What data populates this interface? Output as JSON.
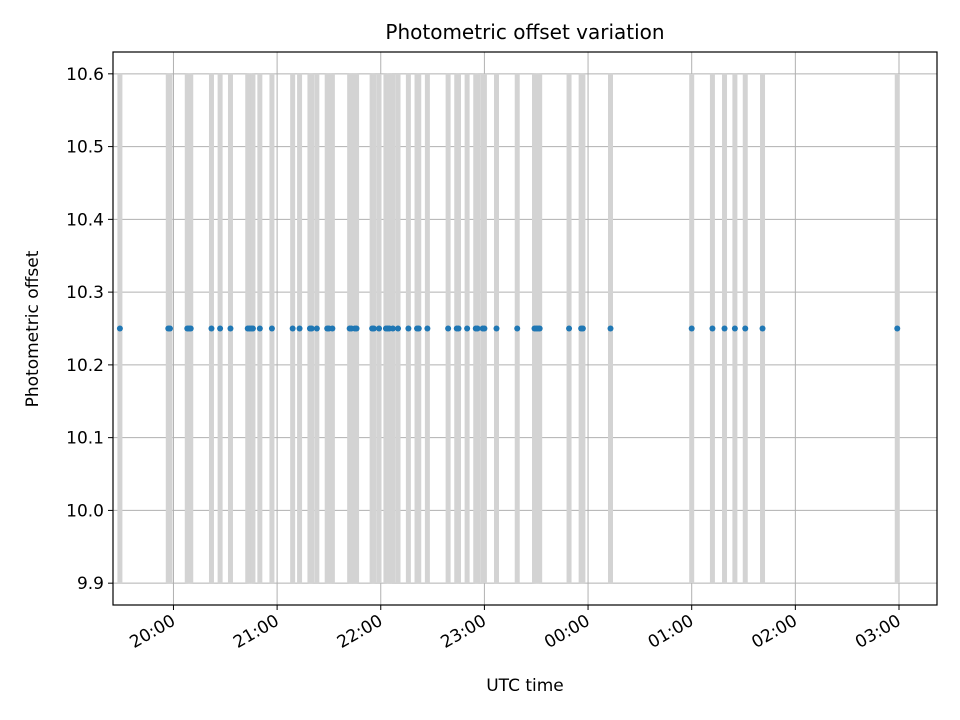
{
  "chart_data": {
    "type": "scatter",
    "title": "Photometric offset variation",
    "xlabel": "UTC time",
    "ylabel": "Photometric offset",
    "ylim": [
      9.87,
      10.63
    ],
    "xlim": [
      "19:25",
      "03:22"
    ],
    "xticks": [
      "20:00",
      "21:00",
      "22:00",
      "23:00",
      "00:00",
      "01:00",
      "02:00",
      "03:00"
    ],
    "yticks": [
      9.9,
      10.0,
      10.1,
      10.2,
      10.3,
      10.4,
      10.5,
      10.6
    ],
    "ytick_labels": [
      "9.9",
      "10.0",
      "10.1",
      "10.2",
      "10.3",
      "10.4",
      "10.5",
      "10.6"
    ],
    "grid": true,
    "error_bars": {
      "color": "#d3d3d3",
      "low": 9.9,
      "high": 10.6
    },
    "series": [
      {
        "color": "#1f77b4",
        "x": [
          "19:29",
          "19:57",
          "19:58",
          "20:08",
          "20:09",
          "20:10",
          "20:22",
          "20:27",
          "20:33",
          "20:43",
          "20:44",
          "20:45",
          "20:46",
          "20:50",
          "20:57",
          "21:09",
          "21:13",
          "21:19",
          "21:20",
          "21:23",
          "21:29",
          "21:30",
          "21:32",
          "21:42",
          "21:43",
          "21:45",
          "21:46",
          "21:55",
          "21:56",
          "21:59",
          "22:03",
          "22:04",
          "22:05",
          "22:07",
          "22:10",
          "22:16",
          "22:21",
          "22:22",
          "22:27",
          "22:39",
          "22:44",
          "22:45",
          "22:50",
          "22:55",
          "22:56",
          "22:59",
          "23:00",
          "23:07",
          "23:19",
          "23:29",
          "23:30",
          "23:31",
          "23:32",
          "23:49",
          "23:56",
          "23:57",
          "00:13",
          "01:00",
          "01:12",
          "01:19",
          "01:25",
          "01:31",
          "01:41",
          "02:59"
        ],
        "y": [
          10.25,
          10.25,
          10.25,
          10.25,
          10.25,
          10.25,
          10.25,
          10.25,
          10.25,
          10.25,
          10.25,
          10.25,
          10.25,
          10.25,
          10.25,
          10.25,
          10.25,
          10.25,
          10.25,
          10.25,
          10.25,
          10.25,
          10.25,
          10.25,
          10.25,
          10.25,
          10.25,
          10.25,
          10.25,
          10.25,
          10.25,
          10.25,
          10.25,
          10.25,
          10.25,
          10.25,
          10.25,
          10.25,
          10.25,
          10.25,
          10.25,
          10.25,
          10.25,
          10.25,
          10.25,
          10.25,
          10.25,
          10.25,
          10.25,
          10.25,
          10.25,
          10.25,
          10.25,
          10.25,
          10.25,
          10.25,
          10.25,
          10.25,
          10.25,
          10.25,
          10.25,
          10.25,
          10.25,
          10.25
        ]
      }
    ]
  }
}
